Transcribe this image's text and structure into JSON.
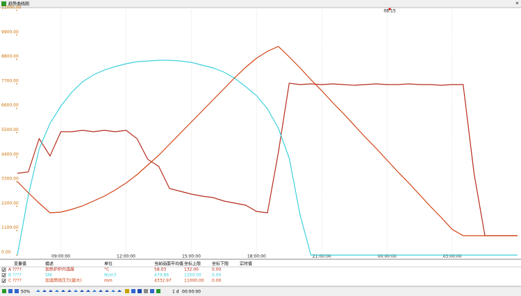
{
  "window": {
    "title": "趋势曲线图",
    "cursor_time": "08:15"
  },
  "chart_data": {
    "type": "line",
    "x": [
      7,
      7.5,
      8,
      8.5,
      9,
      9.5,
      10,
      10.5,
      11,
      11.5,
      12,
      12.5,
      13,
      13.5,
      14,
      14.5,
      15,
      15.5,
      16,
      16.5,
      17,
      17.5,
      18,
      18.5,
      19,
      19.5,
      20,
      20.5,
      21,
      21.5,
      22,
      22.5,
      23,
      23.5,
      24,
      24.5,
      25,
      25.5,
      26,
      26.5,
      27,
      27.5,
      28,
      28.5,
      29,
      29.5,
      30
    ],
    "xlim": [
      7,
      30
    ],
    "xticks": [
      {
        "value": 9,
        "label": "09:00:00"
      },
      {
        "value": 12,
        "label": "12:00:00"
      },
      {
        "value": 15,
        "label": "15:00:00"
      },
      {
        "value": 18,
        "label": "18:00:00"
      },
      {
        "value": 21,
        "label": "21:00:00"
      },
      {
        "value": 24,
        "label": "00:00:00"
      },
      {
        "value": 27,
        "label": "03:00:00"
      }
    ],
    "ylim": [
      0,
      11000
    ],
    "yticks": [
      {
        "value": 0,
        "label": "0.00"
      },
      {
        "value": 1100,
        "label": "1100.00"
      },
      {
        "value": 2200,
        "label": "2200.00"
      },
      {
        "value": 3300,
        "label": "3300.00"
      },
      {
        "value": 4400,
        "label": "4400.00"
      },
      {
        "value": 5500,
        "label": "5500.00"
      },
      {
        "value": 6600,
        "label": "6600.00"
      },
      {
        "value": 7700,
        "label": "7700.00"
      },
      {
        "value": 8800,
        "label": "8800.00"
      },
      {
        "value": 9900,
        "label": "9900.00"
      },
      {
        "value": 11000,
        "label": "11000.00"
      }
    ],
    "grid": "x",
    "series": [
      {
        "name": "加热炉炉内温度",
        "color": "#b52a1a",
        "values": [
          3677,
          3740,
          5235,
          4456,
          5546,
          5546,
          5609,
          5546,
          5609,
          5546,
          5609,
          5235,
          4300,
          3988,
          2991,
          2867,
          2742,
          2649,
          2586,
          2430,
          2337,
          2244,
          1963,
          1901,
          4612,
          7728,
          7665,
          7696,
          7665,
          7696,
          7665,
          7634,
          7665,
          7696,
          7665,
          7665,
          7696,
          7665,
          7665,
          7634,
          7665,
          7665,
          3677,
          872,
          872,
          872,
          872
        ]
      },
      {
        "name": "SNI",
        "color": "#3cd0dc",
        "values": [
          0,
          2680,
          4767,
          5920,
          6699,
          7322,
          7790,
          8102,
          8320,
          8476,
          8600,
          8694,
          8725,
          8756,
          8756,
          8725,
          8663,
          8538,
          8413,
          8226,
          7946,
          7572,
          7167,
          6575,
          5702,
          4362,
          1807,
          0,
          0,
          0,
          0,
          0,
          0,
          0,
          0,
          0,
          0,
          0,
          0,
          0,
          0,
          0,
          0,
          0,
          0,
          0,
          0
        ]
      },
      {
        "name": "加温燃烧压力(最大)",
        "color": "#d04010",
        "values": [
          3303,
          2804,
          2337,
          1901,
          1932,
          2057,
          2212,
          2430,
          2649,
          2929,
          3241,
          3615,
          4051,
          4487,
          4986,
          5484,
          5983,
          6481,
          6980,
          7478,
          7977,
          8444,
          8850,
          9161,
          9379,
          8912,
          8413,
          7883,
          7385,
          6855,
          6357,
          5827,
          5297,
          4799,
          4269,
          3739,
          3241,
          2711,
          2181,
          1683,
          1153,
          872,
          872,
          872,
          872,
          872,
          872
        ]
      }
    ]
  },
  "legend_table": {
    "headers": [
      "变量值",
      "描述",
      "单位",
      "当前画面平均值",
      "坐标上限",
      "坐标下限",
      "实时值"
    ],
    "rows": [
      {
        "tag": "A ????",
        "unit": "°C",
        "average": "58.03",
        "upper": "132.00",
        "lower": "0.00"
      },
      {
        "tag": "B ????",
        "unit": "Ncm3",
        "average": "479.89",
        "upper": "1200.00",
        "lower": "0.00"
      },
      {
        "tag": "C ????",
        "unit": "mm",
        "average": "4332.97",
        "upper": "11000.00",
        "lower": "0.00"
      }
    ]
  },
  "toolbar": {
    "zoom": "50%",
    "span": "1 d",
    "time": "00:00:00"
  }
}
